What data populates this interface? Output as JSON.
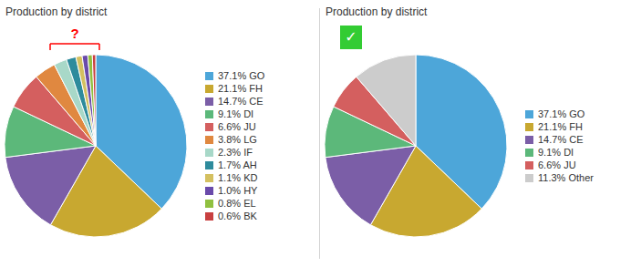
{
  "chart_data": [
    {
      "type": "pie",
      "title": "Production by district",
      "categories": [
        "37.1% GO",
        "21.1% FH",
        "14.7% CE",
        "9.1% DI",
        "6.6% JU",
        "3.8% LG",
        "2.3% IF",
        "1.7% AH",
        "1.1% KD",
        "1.0% HY",
        "0.8% EL",
        "0.6% BK"
      ],
      "values": [
        37.1,
        21.1,
        14.7,
        9.1,
        6.6,
        3.8,
        2.3,
        1.7,
        1.1,
        1.0,
        0.8,
        0.6
      ],
      "colors": [
        "#4da6d9",
        "#c8a830",
        "#7b5ea7",
        "#5cb87a",
        "#d45f5f",
        "#e08840",
        "#a8d8c8",
        "#2e8b9c",
        "#d4c060",
        "#6a4aaa",
        "#90c040",
        "#c84040"
      ],
      "legend": "right",
      "annotations": [
        {
          "text": "?",
          "color": "#ff0000"
        }
      ]
    },
    {
      "type": "pie",
      "title": "Production by district",
      "categories": [
        "37.1% GO",
        "21.1% FH",
        "14.7% CE",
        "9.1% DI",
        "6.6% JU",
        "11.3% Other"
      ],
      "values": [
        37.1,
        21.1,
        14.7,
        9.1,
        6.6,
        11.3
      ],
      "colors": [
        "#4da6d9",
        "#c8a830",
        "#7b5ea7",
        "#5cb87a",
        "#d45f5f",
        "#cccccc"
      ],
      "legend": "right",
      "annotations": [
        {
          "text": "✓",
          "color": "#33cc33"
        }
      ]
    }
  ]
}
